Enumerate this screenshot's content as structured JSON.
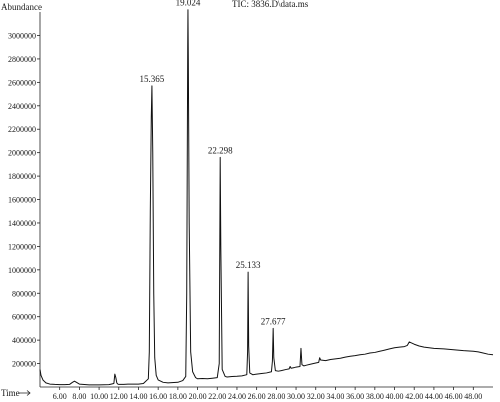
{
  "header": {
    "ylabel": "Abundance",
    "title": "TIC: 3836.D\\data.ms",
    "xlabel": "Time"
  },
  "chart_data": {
    "type": "line",
    "title": "TIC: 3836.D\\data.ms",
    "xlabel": "Time",
    "ylabel": "Abundance",
    "xlim": [
      4.0,
      50.0
    ],
    "ylim": [
      0,
      3300000
    ],
    "grid": false,
    "x_ticks": [
      "6.00",
      "8.00",
      "10.00",
      "12.00",
      "14.00",
      "16.00",
      "18.00",
      "20.00",
      "22.00",
      "24.00",
      "26.00",
      "28.00",
      "30.00",
      "32.00",
      "34.00",
      "36.00",
      "38.00",
      "40.00",
      "42.00",
      "44.00",
      "46.00",
      "48.00"
    ],
    "y_ticks": [
      "200000",
      "400000",
      "600000",
      "800000",
      "1000000",
      "1200000",
      "1400000",
      "1600000",
      "1800000",
      "2000000",
      "2200000",
      "2400000",
      "2600000",
      "2800000",
      "3000000"
    ],
    "peak_labels": [
      "15.365",
      "19.024",
      "22.298",
      "25.133",
      "27.677"
    ],
    "series": [
      {
        "x": [
          4.0,
          4.1,
          4.3,
          4.6,
          5.0,
          5.5,
          6.0,
          6.5,
          7.0,
          7.3,
          7.5,
          7.7,
          8.0,
          9.0,
          10.0,
          11.0,
          11.5,
          11.6,
          11.7,
          11.8,
          11.9,
          12.0,
          12.5,
          13.0,
          14.0,
          14.5,
          15.0,
          15.1,
          15.2,
          15.3,
          15.365,
          15.45,
          15.55,
          15.65,
          15.8,
          16.0,
          16.5,
          17.0,
          18.0,
          18.5,
          18.8,
          18.9,
          19.0,
          19.024,
          19.06,
          19.15,
          19.3,
          19.5,
          19.8,
          20.0,
          20.5,
          21.0,
          21.5,
          22.0,
          22.2,
          22.298,
          22.36,
          22.5,
          22.8,
          23.0,
          23.5,
          24.0,
          24.5,
          25.0,
          25.08,
          25.133,
          25.19,
          25.3,
          25.6,
          26.0,
          26.5,
          27.0,
          27.5,
          27.6,
          27.677,
          27.74,
          27.9,
          28.2,
          28.5,
          29.0,
          29.3,
          29.4,
          29.5,
          29.8,
          30.0,
          30.4,
          30.5,
          30.6,
          30.8,
          31.0,
          31.5,
          32.0,
          32.3,
          32.4,
          32.5,
          33.0,
          33.5,
          34.0,
          34.5,
          35.0,
          35.5,
          36.0,
          36.5,
          37.0,
          37.5,
          38.0,
          38.5,
          39.0,
          39.5,
          40.0,
          40.5,
          41.0,
          41.3,
          41.5,
          42.0,
          42.5,
          43.0,
          44.0,
          45.0,
          46.0,
          47.0,
          48.0,
          48.5,
          49.0,
          49.5,
          50.0
        ],
        "y": [
          150000,
          100000,
          60000,
          35000,
          25000,
          22000,
          20000,
          20000,
          22000,
          40000,
          50000,
          40000,
          25000,
          18000,
          18000,
          20000,
          30000,
          110000,
          80000,
          35000,
          25000,
          22000,
          22000,
          25000,
          25000,
          30000,
          70000,
          300000,
          1500000,
          2300000,
          2570000,
          2000000,
          800000,
          250000,
          100000,
          60000,
          40000,
          35000,
          40000,
          55000,
          90000,
          800000,
          2900000,
          3220000,
          2800000,
          1400000,
          300000,
          130000,
          80000,
          70000,
          72000,
          70000,
          75000,
          80000,
          200000,
          1960000,
          1200000,
          150000,
          90000,
          85000,
          90000,
          92000,
          95000,
          105000,
          300000,
          980000,
          350000,
          120000,
          105000,
          110000,
          115000,
          120000,
          130000,
          220000,
          500000,
          250000,
          140000,
          135000,
          140000,
          150000,
          155000,
          175000,
          160000,
          165000,
          170000,
          175000,
          330000,
          190000,
          180000,
          185000,
          195000,
          205000,
          210000,
          250000,
          230000,
          225000,
          235000,
          240000,
          245000,
          255000,
          262000,
          268000,
          275000,
          280000,
          290000,
          295000,
          305000,
          315000,
          325000,
          335000,
          340000,
          345000,
          355000,
          385000,
          365000,
          350000,
          340000,
          330000,
          325000,
          318000,
          310000,
          305000,
          300000,
          290000,
          280000,
          275000
        ]
      }
    ]
  }
}
